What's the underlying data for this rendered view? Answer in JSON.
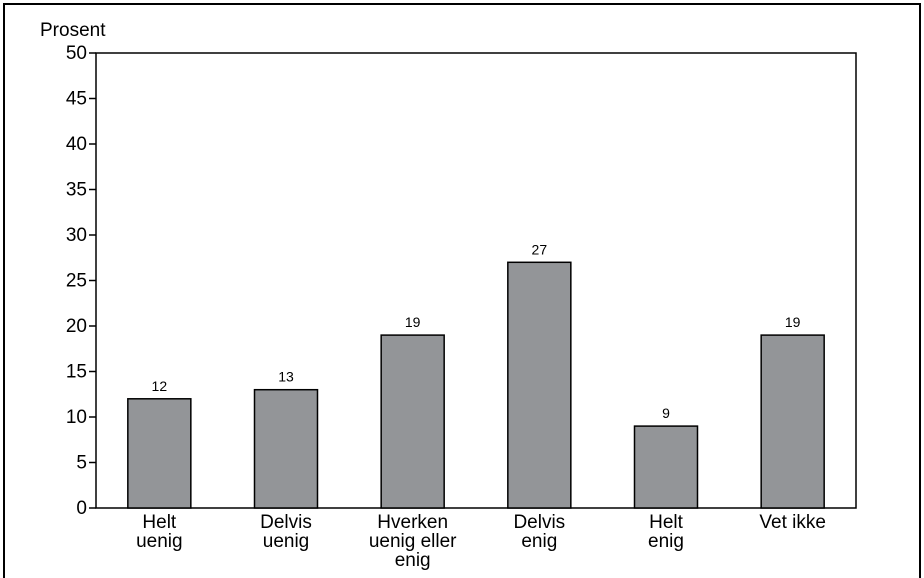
{
  "chart_data": {
    "type": "bar",
    "title": "",
    "xlabel": "",
    "ylabel": "Prosent",
    "ylim": [
      0,
      50
    ],
    "ytick_step": 5,
    "ytick_labels": [
      "0",
      "5",
      "10",
      "15",
      "20",
      "25",
      "30",
      "35",
      "40",
      "45",
      "50"
    ],
    "grid": false,
    "bar_color": "#939598",
    "categories": [
      [
        "Helt",
        "uenig"
      ],
      [
        "Delvis",
        "uenig"
      ],
      [
        "Hverken",
        "uenig eller",
        "enig"
      ],
      [
        "Delvis",
        "enig"
      ],
      [
        "Helt",
        "enig"
      ],
      [
        "Vet ikke"
      ]
    ],
    "values": [
      12,
      13,
      19,
      27,
      9,
      19
    ],
    "value_labels": [
      "12",
      "13",
      "19",
      "27",
      "9",
      "19"
    ]
  }
}
